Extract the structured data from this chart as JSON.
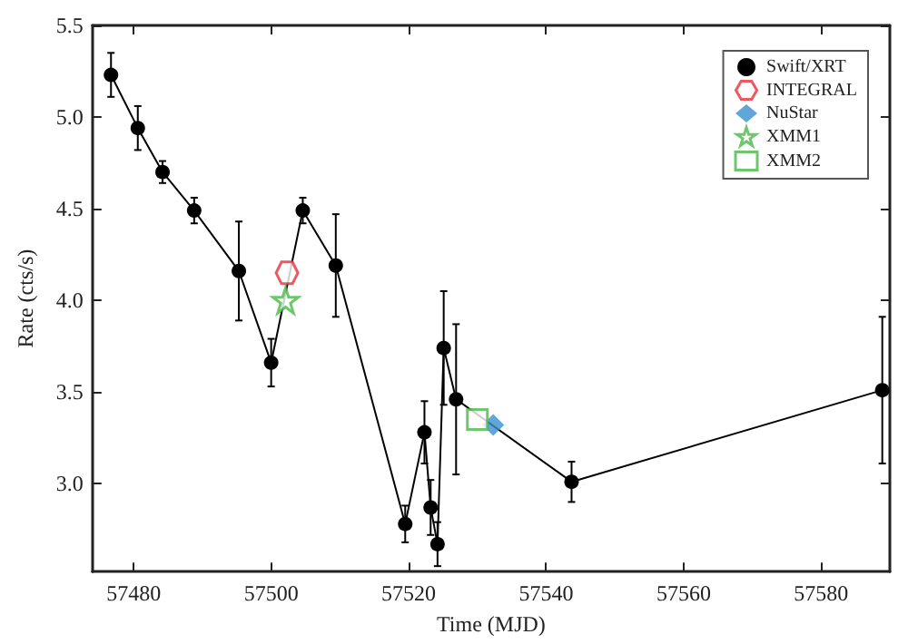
{
  "chart_data": {
    "type": "line",
    "xlabel": "Time (MJD)",
    "ylabel": "Rate (cts/s)",
    "xlim": [
      57474,
      57590
    ],
    "xticks": [
      57480,
      57500,
      57520,
      57540,
      57560,
      57580
    ],
    "ylim": [
      2.52,
      5.5
    ],
    "yticks": [
      {
        "value": 3,
        "label": "3.0"
      },
      3.5,
      {
        "value": 4,
        "label": "4.0"
      },
      4.5,
      {
        "value": 5,
        "label": "5.0"
      },
      5.5
    ],
    "grid": false,
    "legend": "top right",
    "series": [
      {
        "name": "Swift/XRT",
        "marker": "circle",
        "color": "#000000",
        "x": [
          57476.7,
          57480.6,
          57484.2,
          57488.8,
          57495.3,
          57500,
          57504.6,
          57509.4,
          57519.5,
          57522.3,
          57523.2,
          57524.2,
          57525.1,
          57526.9,
          57543.7,
          57588.9
        ],
        "values": [
          5.23,
          4.94,
          4.7,
          4.49,
          4.16,
          3.66,
          4.49,
          4.19,
          2.78,
          3.28,
          2.87,
          2.67,
          3.74,
          3.46,
          3.01,
          3.51
        ],
        "errors": [
          0.12,
          0.12,
          0.06,
          0.07,
          0.27,
          0.13,
          0.07,
          0.28,
          0.1,
          0.17,
          0.15,
          0.12,
          0.31,
          0.41,
          0.11,
          0.4
        ]
      },
      {
        "name": "INTEGRAL",
        "type": "scatter",
        "color": "#e8303a",
        "x": [
          57502.3
        ],
        "values": [
          4.15
        ]
      },
      {
        "name": "NuStar",
        "type": "scatter",
        "marker": "diamond",
        "color": "#3a8fd0",
        "x": [
          57532.3
        ],
        "values": [
          3.32
        ]
      },
      {
        "name": "XMM1",
        "type": "scatter",
        "marker": "star",
        "color": "#4cb848",
        "x": [
          57502.1
        ],
        "values": [
          4.0
        ]
      },
      {
        "name": "XMM2",
        "type": "scatter",
        "marker": "square",
        "color": "#4cb848",
        "x": [
          57530.0
        ],
        "values": [
          3.35
        ]
      }
    ]
  }
}
